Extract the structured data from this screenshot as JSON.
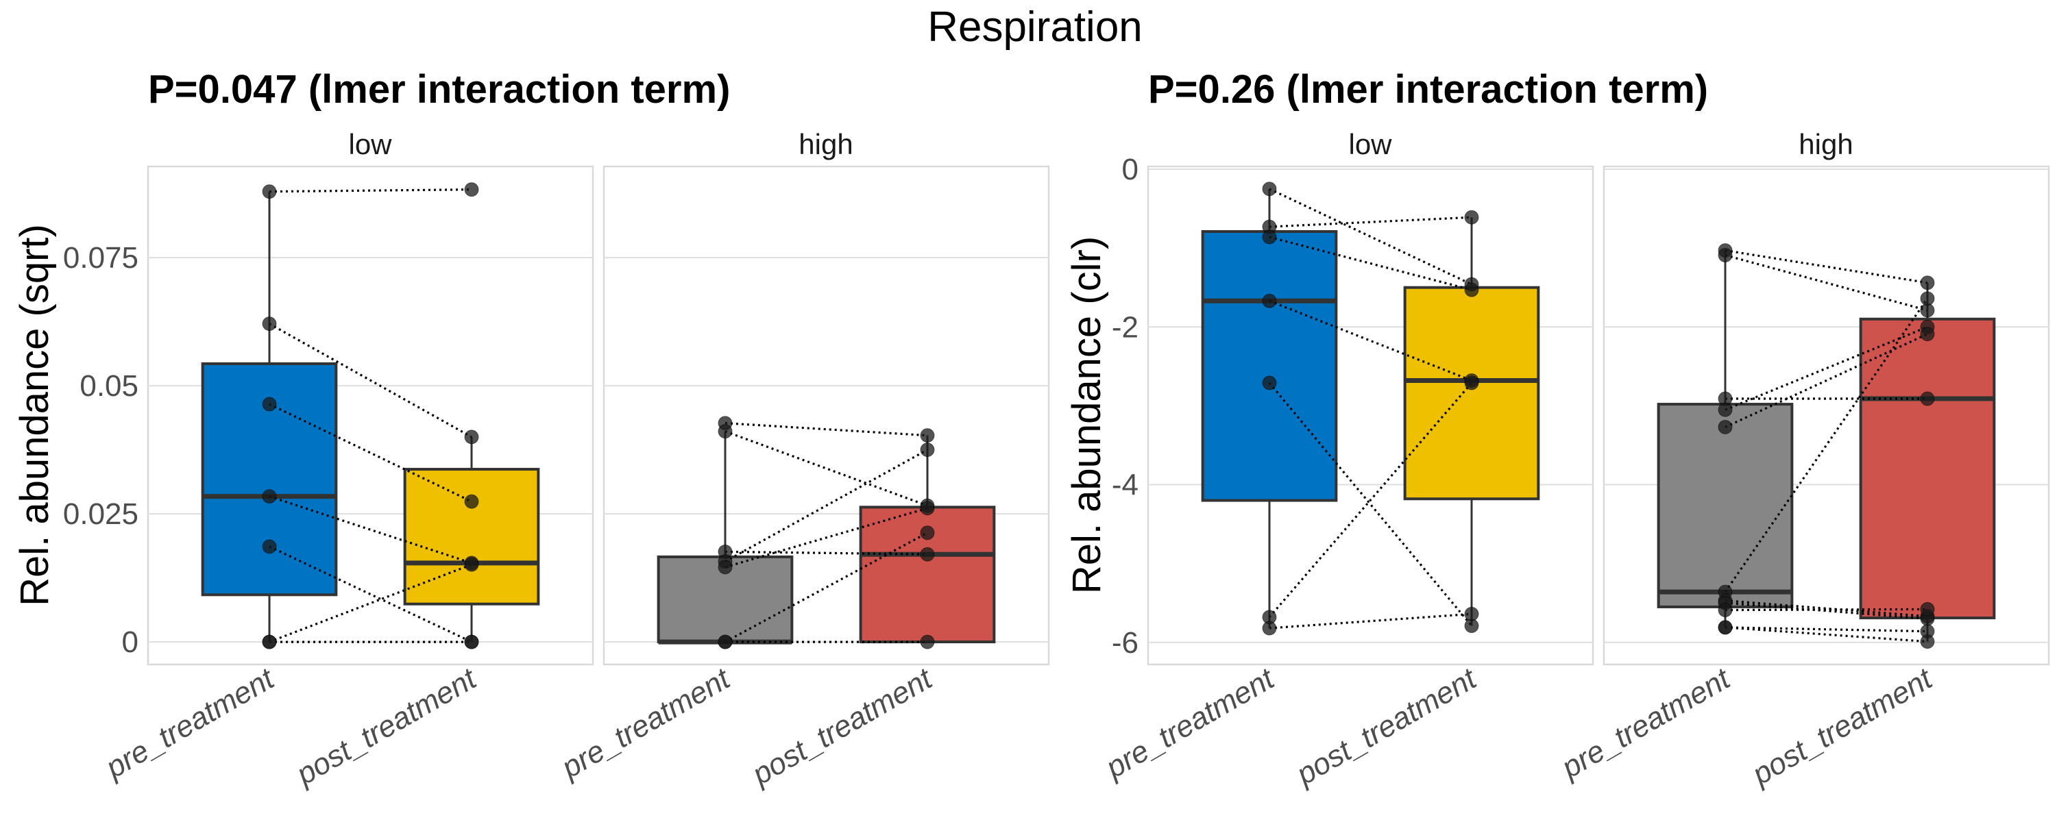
{
  "title": "Respiration",
  "chart_data": [
    {
      "type": "boxplot",
      "subtitle": "P=0.047 (lmer interaction term)",
      "ylabel": "Rel. abundance (sqrt)",
      "xlabel": "",
      "ylim": [
        -0.0044,
        0.0928
      ],
      "yticks": [
        0,
        0.025,
        0.05,
        0.075
      ],
      "ytick_labels": [
        "0",
        "0.025",
        "0.05",
        "0.075"
      ],
      "grid": true,
      "categories": [
        "pre_treatment",
        "post_treatment"
      ],
      "facets": [
        {
          "label": "low",
          "groups": [
            {
              "category": "pre_treatment",
              "color": "#0073C2",
              "box": {
                "whisker_low": 0,
                "q1": 0.0092,
                "median": 0.0284,
                "q3": 0.0543,
                "whisker_high": 0.0879
              },
              "points": [
                0.0879,
                0.0621,
                0.0464,
                0.0284,
                0.0186,
                0,
                0
              ]
            },
            {
              "category": "post_treatment",
              "color": "#EFC000",
              "box": {
                "whisker_low": 0,
                "q1": 0.0074,
                "median": 0.0154,
                "q3": 0.0337,
                "whisker_high": 0.04
              },
              "points": [
                0.0883,
                0.04,
                0.0274,
                0.0154,
                0,
                0.0151,
                0
              ]
            }
          ],
          "pairs": [
            [
              0.0879,
              0.0883
            ],
            [
              0.0621,
              0.04
            ],
            [
              0.0464,
              0.0274
            ],
            [
              0.0284,
              0.0154
            ],
            [
              0.0186,
              0
            ],
            [
              0,
              0.0151
            ],
            [
              0,
              0
            ]
          ]
        },
        {
          "label": "high",
          "groups": [
            {
              "category": "pre_treatment",
              "color": "#868686",
              "box": {
                "whisker_low": 0,
                "q1": 0,
                "median": 0,
                "q3": 0.0166,
                "whisker_high": 0.0411
              },
              "points": [
                0.0427,
                0.0411,
                0.0176,
                0.0157,
                0.0146,
                0,
                0
              ]
            },
            {
              "category": "post_treatment",
              "color": "#CD534C",
              "box": {
                "whisker_low": 0,
                "q1": 0,
                "median": 0.0171,
                "q3": 0.0263,
                "whisker_high": 0.0403
              },
              "points": [
                0.0403,
                0.0266,
                0.0171,
                0.0375,
                0.0261,
                0.0213,
                0
              ]
            }
          ],
          "pairs": [
            [
              0.0427,
              0.0403
            ],
            [
              0.0411,
              0.0266
            ],
            [
              0.0176,
              0.0171
            ],
            [
              0.0157,
              0.0375
            ],
            [
              0.0146,
              0.0261
            ],
            [
              0,
              0.0213
            ],
            [
              0,
              0
            ]
          ]
        }
      ]
    },
    {
      "type": "boxplot",
      "subtitle": "P=0.26 (lmer interaction term)",
      "ylabel": "Rel. abundance (clr)",
      "xlabel": "",
      "ylim": [
        -6.28,
        0.035
      ],
      "yticks": [
        0,
        -2,
        -4,
        -6
      ],
      "ytick_labels": [
        "0",
        "-2",
        "-4",
        "-6"
      ],
      "grid": true,
      "categories": [
        "pre_treatment",
        "post_treatment"
      ],
      "facets": [
        {
          "label": "low",
          "groups": [
            {
              "category": "pre_treatment",
              "color": "#0073C2",
              "box": {
                "whisker_low": -5.82,
                "q1": -4.2,
                "median": -1.67,
                "q3": -0.79,
                "whisker_high": -0.25
              },
              "points": [
                -0.25,
                -0.73,
                -0.86,
                -1.67,
                -2.71,
                -5.68,
                -5.82
              ]
            },
            {
              "category": "post_treatment",
              "color": "#EFC000",
              "box": {
                "whisker_low": -5.79,
                "q1": -4.18,
                "median": -2.68,
                "q3": -1.5,
                "whisker_high": -0.61
              },
              "points": [
                -1.46,
                -0.61,
                -1.53,
                -2.68,
                -5.79,
                -2.71,
                -5.64
              ]
            }
          ],
          "pairs": [
            [
              -0.25,
              -1.46
            ],
            [
              -0.73,
              -0.61
            ],
            [
              -0.86,
              -1.53
            ],
            [
              -1.67,
              -2.68
            ],
            [
              -2.71,
              -5.79
            ],
            [
              -5.68,
              -2.71
            ],
            [
              -5.82,
              -5.64
            ]
          ]
        },
        {
          "label": "high",
          "groups": [
            {
              "category": "pre_treatment",
              "color": "#868686",
              "box": {
                "whisker_low": -5.81,
                "q1": -5.55,
                "median": -5.36,
                "q3": -2.98,
                "whisker_high": -1.03
              },
              "points": [
                -1.03,
                -1.09,
                -2.91,
                -3.05,
                -3.27,
                -5.36,
                -5.47,
                -5.5,
                -5.59,
                -5.81,
                -5.81
              ]
            },
            {
              "category": "post_treatment",
              "color": "#CD534C",
              "box": {
                "whisker_low": -5.99,
                "q1": -5.69,
                "median": -2.91,
                "q3": -1.9,
                "whisker_high": -1.44
              },
              "points": [
                -1.44,
                -1.79,
                -2.91,
                -2.0,
                -2.09,
                -1.64,
                -5.67,
                -5.7,
                -5.58,
                -5.86,
                -5.99
              ]
            }
          ],
          "pairs": [
            [
              -1.03,
              -1.44
            ],
            [
              -1.09,
              -1.79
            ],
            [
              -2.91,
              -2.91
            ],
            [
              -3.05,
              -2.0
            ],
            [
              -3.27,
              -2.09
            ],
            [
              -5.36,
              -1.64
            ],
            [
              -5.47,
              -5.67
            ],
            [
              -5.5,
              -5.7
            ],
            [
              -5.59,
              -5.58
            ],
            [
              -5.81,
              -5.86
            ],
            [
              -5.81,
              -5.99
            ]
          ]
        }
      ]
    }
  ]
}
